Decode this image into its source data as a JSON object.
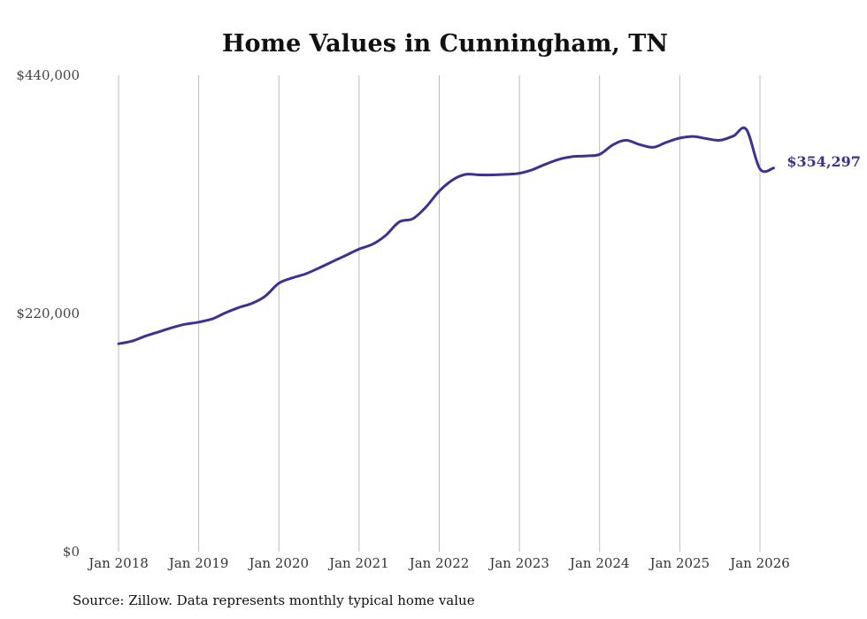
{
  "chart_data": {
    "type": "line",
    "title": "Home Values in Cunningham, TN",
    "xlabel": "",
    "ylabel": "",
    "ylim": [
      0,
      440000
    ],
    "yticks": [
      {
        "value": 0,
        "label": "$0"
      },
      {
        "value": 220000,
        "label": "$220,000"
      },
      {
        "value": 440000,
        "label": "$440,000"
      }
    ],
    "xticks": [
      {
        "year": 2018,
        "label": "Jan 2018"
      },
      {
        "year": 2019,
        "label": "Jan 2019"
      },
      {
        "year": 2020,
        "label": "Jan 2020"
      },
      {
        "year": 2021,
        "label": "Jan 2021"
      },
      {
        "year": 2022,
        "label": "Jan 2022"
      },
      {
        "year": 2023,
        "label": "Jan 2023"
      },
      {
        "year": 2024,
        "label": "Jan 2024"
      },
      {
        "year": 2025,
        "label": "Jan 2025"
      },
      {
        "year": 2026,
        "label": "Jan 2026"
      }
    ],
    "grid": "vertical",
    "series": [
      {
        "name": "Typical home value",
        "color": "#3b3291",
        "x": [
          2018.0,
          2018.17,
          2018.33,
          2018.5,
          2018.67,
          2018.83,
          2019.0,
          2019.17,
          2019.33,
          2019.5,
          2019.67,
          2019.83,
          2020.0,
          2020.17,
          2020.33,
          2020.5,
          2020.67,
          2020.83,
          2021.0,
          2021.17,
          2021.33,
          2021.5,
          2021.67,
          2021.83,
          2022.0,
          2022.17,
          2022.33,
          2022.5,
          2022.67,
          2022.83,
          2023.0,
          2023.17,
          2023.33,
          2023.5,
          2023.67,
          2023.83,
          2024.0,
          2024.17,
          2024.33,
          2024.5,
          2024.67,
          2024.83,
          2025.0,
          2025.17,
          2025.33,
          2025.5,
          2025.67,
          2025.83,
          2026.0,
          2026.17
        ],
        "values": [
          192000,
          194500,
          199000,
          203000,
          207000,
          210000,
          212000,
          215000,
          220500,
          225500,
          229500,
          236000,
          248000,
          253000,
          256500,
          262000,
          268000,
          273500,
          279500,
          284000,
          292000,
          304500,
          307500,
          318000,
          333000,
          343500,
          348500,
          348000,
          348000,
          348500,
          349500,
          353000,
          358000,
          362500,
          365000,
          365500,
          367000,
          376000,
          380000,
          376000,
          373500,
          378000,
          382000,
          383500,
          381500,
          380000,
          384000,
          390000,
          353500,
          354297
        ]
      }
    ],
    "end_label": "$354,297",
    "source": "Source: Zillow. Data represents monthly typical home value"
  }
}
